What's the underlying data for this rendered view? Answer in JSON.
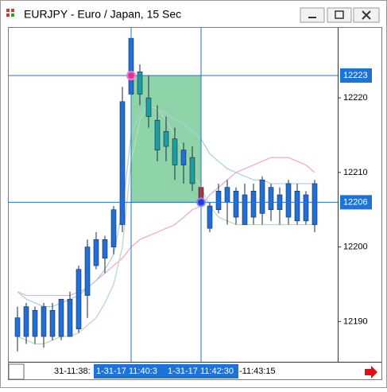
{
  "window": {
    "title": "EURJPY - Euro / Japan, 15 Sec"
  },
  "chart_data": {
    "type": "candlestick",
    "open": [
      12188,
      12188,
      12188,
      12188,
      12188,
      12188,
      12188,
      12189,
      12193.5,
      12197.5,
      12198.5,
      12200,
      12203,
      12220.5,
      12223.5,
      12220,
      12217,
      12215.5,
      12214.5,
      12211,
      12212,
      12208,
      12202.5,
      12205,
      12206,
      12204,
      12203,
      12204,
      12204.5,
      12205,
      12205,
      12204,
      12203.5,
      12203.5,
      12203
    ],
    "high": [
      12192,
      12192.5,
      12192,
      12192.5,
      12192.5,
      12193,
      12194,
      12197.5,
      12201,
      12202,
      12201.5,
      12205.5,
      12221.5,
      12228,
      12224.5,
      12223,
      12219,
      12217.5,
      12216,
      12214,
      12213.5,
      12208,
      12206,
      12208.5,
      12209,
      12208,
      12208.5,
      12208.5,
      12209.5,
      12208.5,
      12208,
      12209,
      12208.5,
      12207.5,
      12209
    ],
    "low": [
      12186,
      12187,
      12187,
      12186.5,
      12187.5,
      12187.5,
      12188,
      12188.5,
      12190.5,
      12197,
      12196.5,
      12199,
      12202,
      12219,
      12219,
      12216,
      12211.5,
      12211.5,
      12209,
      12208.5,
      12207.5,
      12202,
      12202,
      12204.5,
      12203,
      12203,
      12203,
      12203,
      12203,
      12203.5,
      12203,
      12203,
      12203,
      12203,
      12202
    ],
    "close": [
      12190.5,
      12192,
      12191.5,
      12192,
      12191.5,
      12193,
      12193,
      12197,
      12200,
      12201,
      12201,
      12205,
      12219.5,
      12228,
      12220.5,
      12217.5,
      12213,
      12213.5,
      12211,
      12213,
      12208.5,
      12206,
      12205.5,
      12207.5,
      12208,
      12207.5,
      12207,
      12207.5,
      12209,
      12208,
      12207,
      12208.5,
      12207.5,
      12207,
      12208.5
    ],
    "colors": [
      "#1f6fd6",
      "#1f6fd6",
      "#1f6fd6",
      "#1f6fd6",
      "#1f6fd6",
      "#1f6fd6",
      "#1f6fd6",
      "#1f6fd6",
      "#1f6fd6",
      "#1f6fd6",
      "#1f6fd6",
      "#1f6fd6",
      "#1f6fd6",
      "#1f6fd6",
      "#1b9e9e",
      "#1b9e9e",
      "#1b9e9e",
      "#1b9e9e",
      "#1b9e9e",
      "#1f6fd6",
      "#1b9e9e",
      "#c62828",
      "#1f6fd6",
      "#1f6fd6",
      "#1f6fd6",
      "#1f6fd6",
      "#1f6fd6",
      "#1f6fd6",
      "#1f6fd6",
      "#1f6fd6",
      "#1f6fd6",
      "#1f6fd6",
      "#1f6fd6",
      "#1f6fd6",
      "#1f6fd6"
    ],
    "lines": [
      {
        "color": "#f4a6c8",
        "values": [
          12194,
          12193.5,
          12193.5,
          12193.5,
          12193.5,
          12193.5,
          12193.5,
          12194,
          12194.5,
          12195.5,
          12196.5,
          12197.5,
          12198.5,
          12200,
          12201,
          12201.5,
          12202,
          12202.5,
          12203,
          12204,
          12205,
          12205.5,
          12207,
          12208,
          12209,
          12210,
          12210.5,
          12211,
          12211.5,
          12212,
          12212,
          12212,
          12211.5,
          12211,
          12210
        ]
      },
      {
        "color": "#a9cfe0",
        "values": [
          12194,
          12193,
          12192.5,
          12192,
          12192,
          12192.5,
          12193,
          12193.5,
          12194.5,
          12195.5,
          12197,
          12199,
          12205,
          12215,
          12218,
          12219,
          12218.5,
          12218,
          12217,
          12216.5,
          12215.5,
          12214.5,
          12212.5,
          12211.5,
          12210.5,
          12210,
          12209.5,
          12209,
          12209,
          12208.5,
          12208.5,
          12208.5,
          12208.5,
          12208.5,
          12208.5
        ]
      },
      {
        "color": "#b5dcb5",
        "values": [
          12188,
          12187.5,
          12187,
          12187,
          12187.5,
          12188,
          12188,
          12188.5,
          12189.5,
          12190.5,
          12192.5,
          12195,
          12200,
          12211.5,
          12217,
          12219,
          12218.5,
          12217,
          12215,
          12213,
          12210,
          12208,
          12205.5,
          12204,
          12203.5,
          12203,
          12203,
          12203,
          12203,
          12203,
          12203,
          12203,
          12203,
          12203,
          12203
        ]
      }
    ],
    "ylim": [
      12184.6,
      12229.4
    ],
    "yticks": [
      12190,
      12200,
      12210,
      12220
    ],
    "crosshair_values": [
      12223,
      12206
    ],
    "x_labels": [
      "31-11:38:",
      "1-31-17 11:40:3",
      "1-31-17 11:42:30",
      "-11:43:15"
    ],
    "selection_color": "#8fd4a8"
  }
}
